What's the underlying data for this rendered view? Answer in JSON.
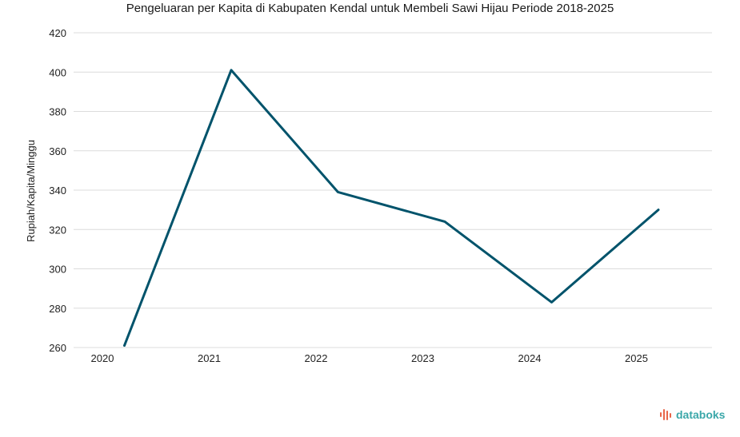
{
  "chart_data": {
    "type": "line",
    "title": "Pengeluaran per Kapita di Kabupaten Kendal untuk Membeli Sawi Hijau Periode 2018-2025",
    "xlabel": "",
    "ylabel": "Rupiah/Kapita/Minggu",
    "categories": [
      "2020",
      "2021",
      "2022",
      "2023",
      "2024",
      "2025"
    ],
    "series": [
      {
        "values": [
          261,
          401,
          339,
          324,
          283,
          330
        ]
      }
    ],
    "ylim": [
      260,
      420
    ],
    "yticks": [
      260,
      280,
      300,
      320,
      340,
      360,
      380,
      400,
      420
    ],
    "grid": true,
    "legend": "none"
  },
  "colors": {
    "series": "#00536b",
    "grid": "#dcdcdc",
    "brand_text": "#3aa7a9",
    "brand_mark": "#e8664a"
  },
  "brand": {
    "text": "databoks",
    "icon": "databoks-logo-icon"
  }
}
